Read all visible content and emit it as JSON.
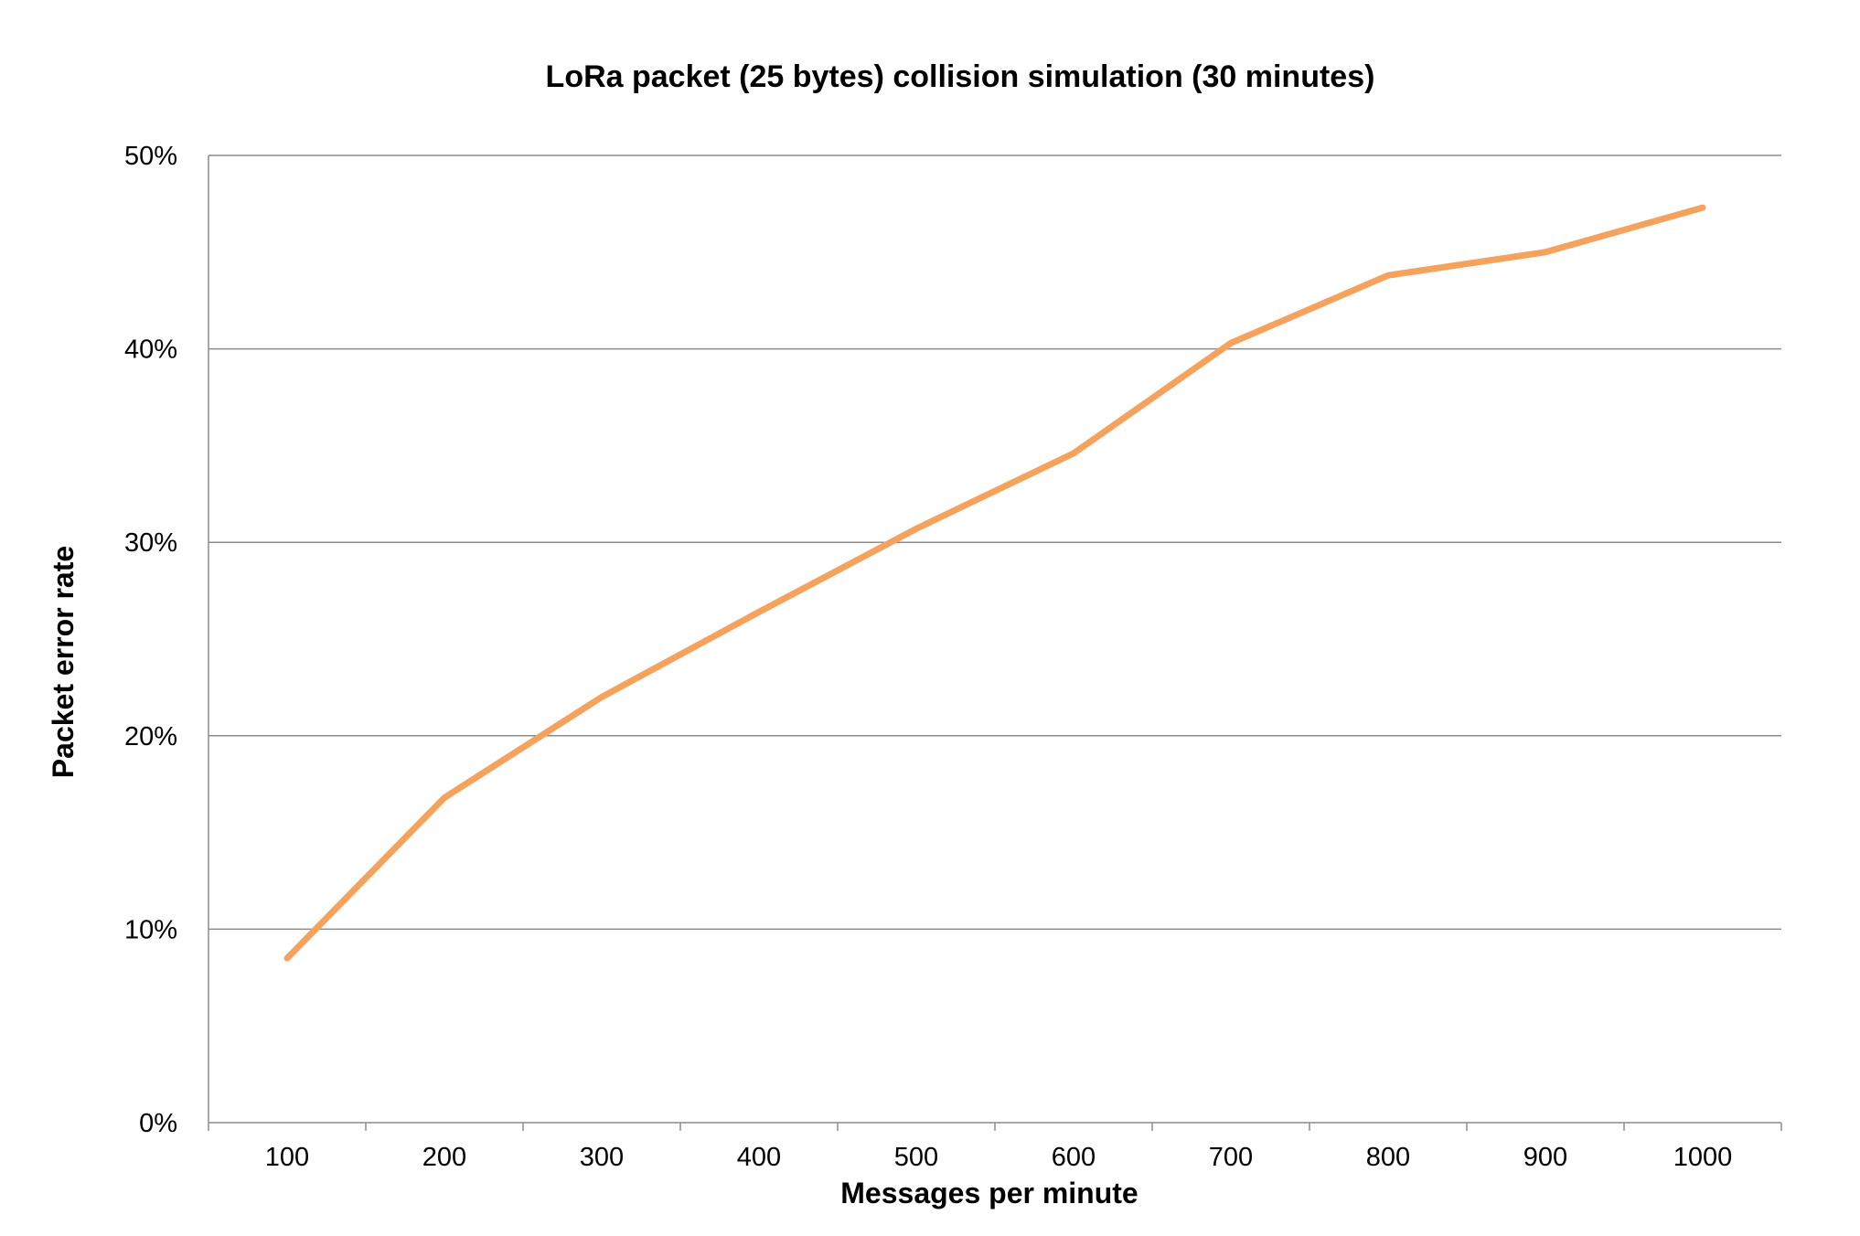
{
  "chart_data": {
    "type": "line",
    "title": "LoRa packet (25 bytes) collision simulation (30 minutes)",
    "xlabel": "Messages per minute",
    "ylabel": "Packet error rate",
    "categories": [
      "100",
      "200",
      "300",
      "400",
      "500",
      "600",
      "700",
      "800",
      "900",
      "1000"
    ],
    "y_tick_labels": [
      "0%",
      "10%",
      "20%",
      "30%",
      "40%",
      "50%"
    ],
    "y_ticks": [
      0,
      10,
      20,
      30,
      40,
      50
    ],
    "ylim": [
      0,
      50
    ],
    "grid": true,
    "legend": "none",
    "series": [
      {
        "values": [
          8.5,
          16.8,
          22.0,
          26.4,
          30.7,
          34.6,
          40.3,
          43.8,
          45.0,
          47.3
        ],
        "color": "#f5a25d"
      }
    ]
  }
}
